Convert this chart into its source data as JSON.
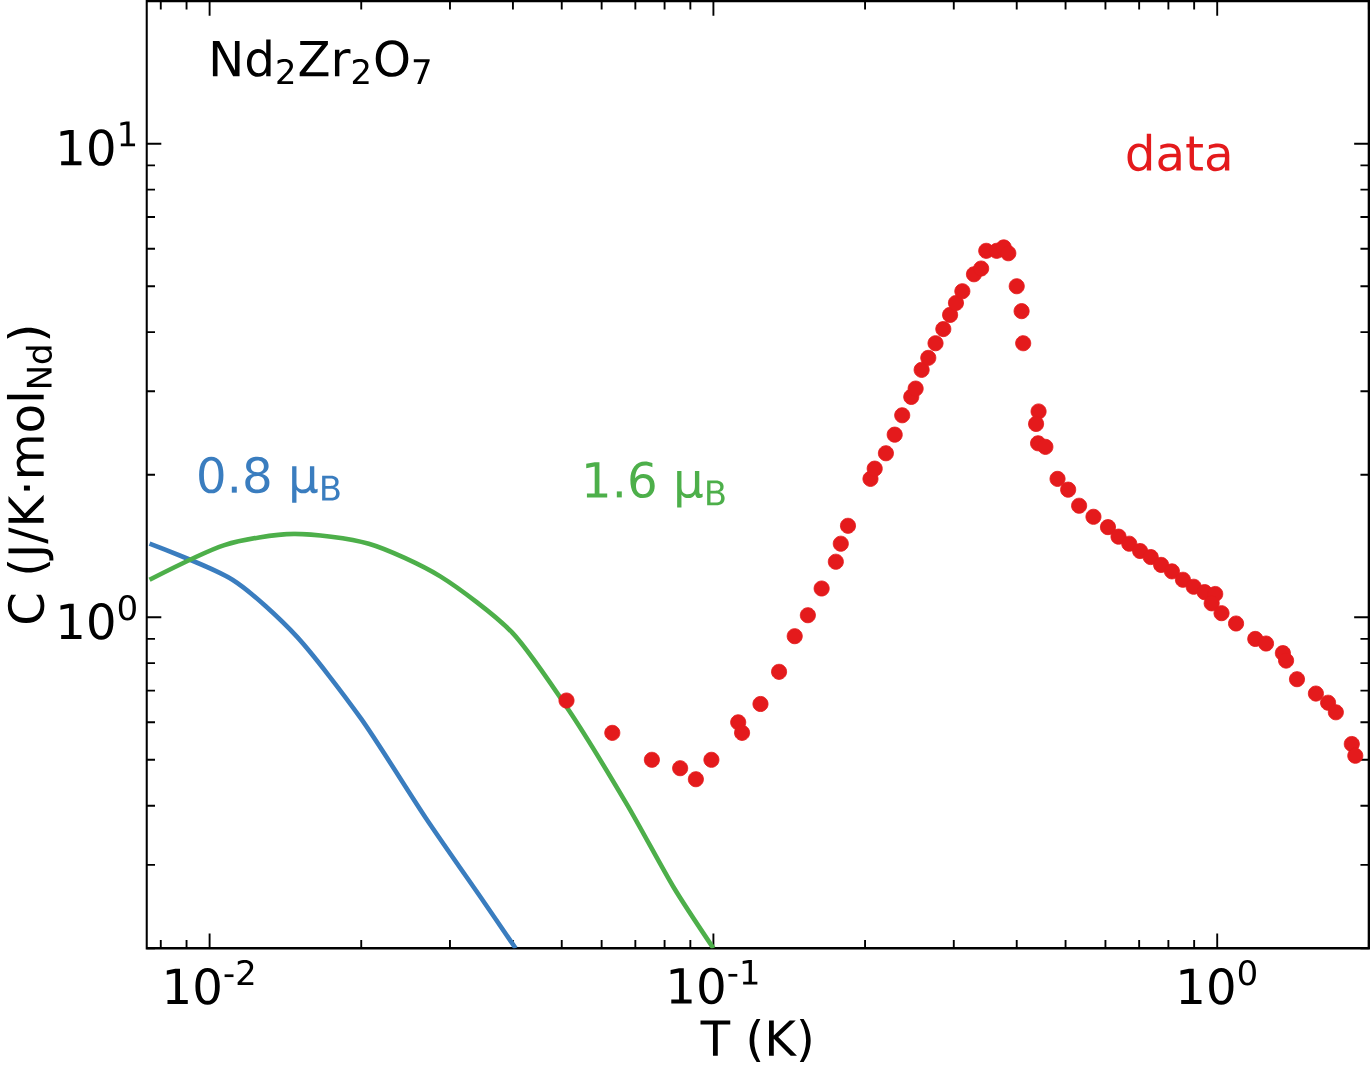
{
  "chart_data": {
    "type": "line",
    "xlabel": "T (K)",
    "ylabel": "C (J/K·mol$_{Nd}$)",
    "annotations": [
      "Nd$_{2}$Zr$_{2}$O$_{7}$"
    ],
    "log": "xy",
    "grid": false,
    "legend": false,
    "xlim": [
      0.0075,
      2.0
    ],
    "ylim": [
      0.2,
      20
    ],
    "xticks": [
      {
        "value": 0.01,
        "label": "10$^{-2}$"
      },
      {
        "value": 0.1,
        "label": "10$^{-1}$"
      },
      {
        "value": 1,
        "label": "10$^{0}$"
      }
    ],
    "yticks": [
      {
        "value": 1,
        "label": "10$^{0}$"
      },
      {
        "value": 10,
        "label": "10$^{1}$"
      }
    ],
    "series": [
      {
        "name": "0.8 μ$_{B}$",
        "color": "#3a7dbf",
        "marker": "none",
        "x": [
          0.0076,
          0.0111,
          0.0149,
          0.02,
          0.0269,
          0.0349,
          0.0405
        ],
        "values": [
          1.43,
          1.2,
          0.91,
          0.61,
          0.376,
          0.252,
          0.2
        ]
      },
      {
        "name": "1.6 μ$_{B}$",
        "color": "#4daf4a",
        "marker": "none",
        "x": [
          0.0076,
          0.0107,
          0.0147,
          0.0207,
          0.0287,
          0.0398,
          0.0518,
          0.0673,
          0.0832,
          0.1
        ],
        "values": [
          1.2,
          1.42,
          1.5,
          1.43,
          1.22,
          0.93,
          0.633,
          0.403,
          0.27,
          0.2
        ]
      },
      {
        "name": "data",
        "color": "#e41a1c",
        "type": "scatter",
        "marker": "circle",
        "x": [
          0.0511,
          0.063,
          0.0755,
          0.0859,
          0.0923,
          0.0991,
          0.112,
          0.114,
          0.124,
          0.135,
          0.145,
          0.154,
          0.164,
          0.175,
          0.179,
          0.185,
          0.205,
          0.209,
          0.22,
          0.229,
          0.237,
          0.247,
          0.252,
          0.259,
          0.267,
          0.276,
          0.286,
          0.295,
          0.303,
          0.312,
          0.329,
          0.34,
          0.348,
          0.365,
          0.377,
          0.385,
          0.4,
          0.409,
          0.412,
          0.442,
          0.437,
          0.441,
          0.456,
          0.482,
          0.506,
          0.532,
          0.568,
          0.607,
          0.637,
          0.669,
          0.703,
          0.738,
          0.774,
          0.813,
          0.855,
          0.898,
          0.944,
          0.991,
          0.975,
          1.02,
          1.09,
          1.19,
          1.25,
          1.35,
          1.37,
          1.44,
          1.57,
          1.66,
          1.72,
          1.85,
          1.88
        ],
        "values": [
          0.667,
          0.57,
          0.5,
          0.48,
          0.455,
          0.5,
          0.6,
          0.57,
          0.656,
          0.767,
          0.912,
          1.01,
          1.15,
          1.31,
          1.43,
          1.56,
          1.96,
          2.06,
          2.22,
          2.43,
          2.67,
          2.92,
          3.04,
          3.33,
          3.53,
          3.79,
          4.06,
          4.35,
          4.61,
          4.88,
          5.3,
          5.45,
          5.94,
          5.94,
          6.04,
          5.87,
          5.0,
          4.43,
          3.79,
          2.72,
          2.56,
          2.33,
          2.29,
          1.96,
          1.86,
          1.72,
          1.63,
          1.55,
          1.48,
          1.43,
          1.38,
          1.34,
          1.29,
          1.25,
          1.2,
          1.16,
          1.13,
          1.12,
          1.07,
          1.02,
          0.97,
          0.9,
          0.88,
          0.84,
          0.81,
          0.74,
          0.69,
          0.66,
          0.63,
          0.54,
          0.51
        ]
      }
    ]
  }
}
